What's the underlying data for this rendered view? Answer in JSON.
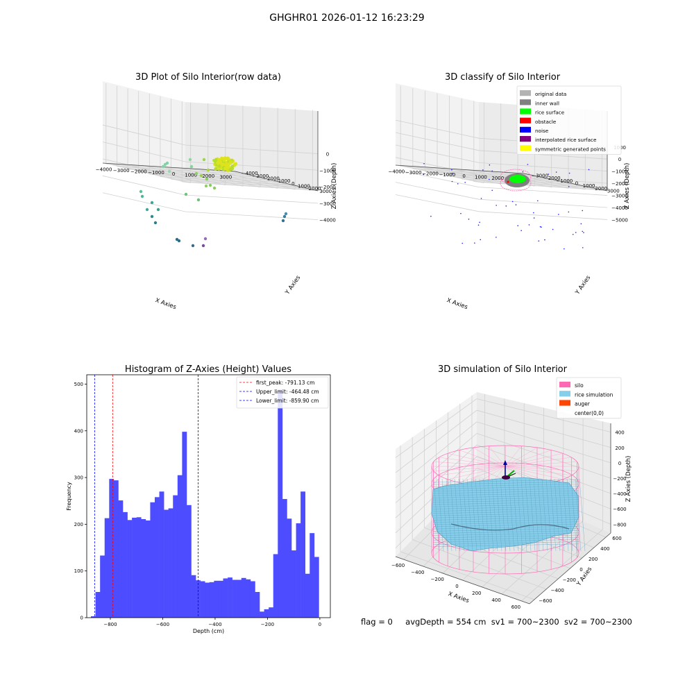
{
  "suptitle": "GHGHR01 2026-01-12 16:23:29",
  "footer": {
    "flag": "flag = 0",
    "avg_depth": "avgDepth = 554 cm",
    "sv1": "sv1 = 700~2300",
    "sv2": "sv2 = 700~2300"
  },
  "chart_data": [
    {
      "type": "scatter",
      "projection": "3d",
      "title": "3D Plot of Silo Interior(row data)",
      "xlabel": "X Axies",
      "ylabel": "Y Axies",
      "zlabel": "Z Axies (Depth)",
      "x_ticks": [
        "−4000",
        "−3000",
        "−2000",
        "−1000",
        "0",
        "1000",
        "2000",
        "3000"
      ],
      "y_ticks": [
        "−4000",
        "−3000",
        "−2000",
        "−1000",
        "0",
        "1000",
        "2000",
        "3000"
      ],
      "z_ticks": [
        "0",
        "−1000",
        "−2000",
        "−3000",
        "−4000"
      ],
      "colormap": "viridis"
    },
    {
      "type": "scatter",
      "projection": "3d",
      "title": "3D classify of Silo Interior",
      "xlabel": "X Axies",
      "ylabel": "Y Axies",
      "zlabel": "Z Axies (Depth)",
      "x_ticks": [
        "−4000",
        "−3000",
        "−2000",
        "−1000",
        "0",
        "1000",
        "2000",
        "3000"
      ],
      "y_ticks": [
        "−3000",
        "−2000",
        "−1000",
        "0",
        "1000",
        "2000",
        "3000"
      ],
      "z_ticks": [
        "1000",
        "0",
        "−1000",
        "−2000",
        "−3000",
        "−4000",
        "−5000"
      ],
      "legend_position": "top-right",
      "legend": [
        {
          "label": "original data",
          "color": "#b3b3b3"
        },
        {
          "label": "inner wall",
          "color": "#808080"
        },
        {
          "label": "rice surface",
          "color": "#00ff00"
        },
        {
          "label": "obstacle",
          "color": "#ff0000"
        },
        {
          "label": "noise",
          "color": "#0000ff"
        },
        {
          "label": "interpolated rice surface",
          "color": "#800080"
        },
        {
          "label": "symmetric generated points",
          "color": "#ffff00"
        }
      ]
    },
    {
      "type": "bar",
      "title": "Histogram of Z-Axies (Height) Values",
      "xlabel": "Depth (cm)",
      "ylabel": "Frequency",
      "xlim": [
        -890,
        40
      ],
      "ylim": [
        0,
        520
      ],
      "x_ticks": [
        -800,
        -600,
        -400,
        -200,
        0
      ],
      "x_tick_labels": [
        "−800",
        "−600",
        "−400",
        "−200",
        "0"
      ],
      "y_ticks": [
        0,
        100,
        200,
        300,
        400,
        500
      ],
      "y_tick_labels": [
        "0",
        "100",
        "200",
        "300",
        "400",
        "500"
      ],
      "bar_color": "#4d4dff",
      "bin_start": -874,
      "bin_width": 17.4,
      "values": [
        3,
        55,
        133,
        213,
        297,
        294,
        251,
        226,
        209,
        214,
        215,
        211,
        208,
        247,
        258,
        270,
        231,
        234,
        262,
        305,
        398,
        241,
        91,
        80,
        78,
        75,
        76,
        79,
        79,
        84,
        86,
        81,
        81,
        85,
        82,
        78,
        55,
        13,
        18,
        22,
        136,
        488,
        254,
        212,
        144,
        202,
        270,
        94,
        181,
        130
      ],
      "vlines": [
        {
          "label": "first_peak: -791.13 cm",
          "x": -791.13,
          "color": "#ff0000"
        },
        {
          "label": "Upper_limit: -464.48 cm",
          "x": -464.48,
          "color": "#0000ff"
        },
        {
          "label": "Lower_limit: -859.90 cm",
          "x": -859.9,
          "color": "#0000ff"
        }
      ],
      "legend_position": "top-right"
    },
    {
      "type": "surface",
      "projection": "3d",
      "title": "3D simulation of Silo Interior",
      "xlabel": "X Axies",
      "ylabel": "Y Axies",
      "zlabel": "Z Axies (Depth)",
      "x_ticks": [
        "−600",
        "−400",
        "−200",
        "0",
        "200",
        "400",
        "600"
      ],
      "y_ticks": [
        "−600",
        "−400",
        "−200",
        "0",
        "200",
        "400",
        "600"
      ],
      "z_ticks": [
        "400",
        "200",
        "0",
        "−200",
        "−400",
        "−600",
        "−800"
      ],
      "legend_position": "top-right",
      "legend": [
        {
          "label": "silo",
          "color": "#ff69b4"
        },
        {
          "label": "rice simulation",
          "color": "#87ceeb"
        },
        {
          "label": "auger",
          "color": "#ff4500"
        },
        {
          "label": "center(0,0)",
          "color": ""
        }
      ]
    }
  ]
}
